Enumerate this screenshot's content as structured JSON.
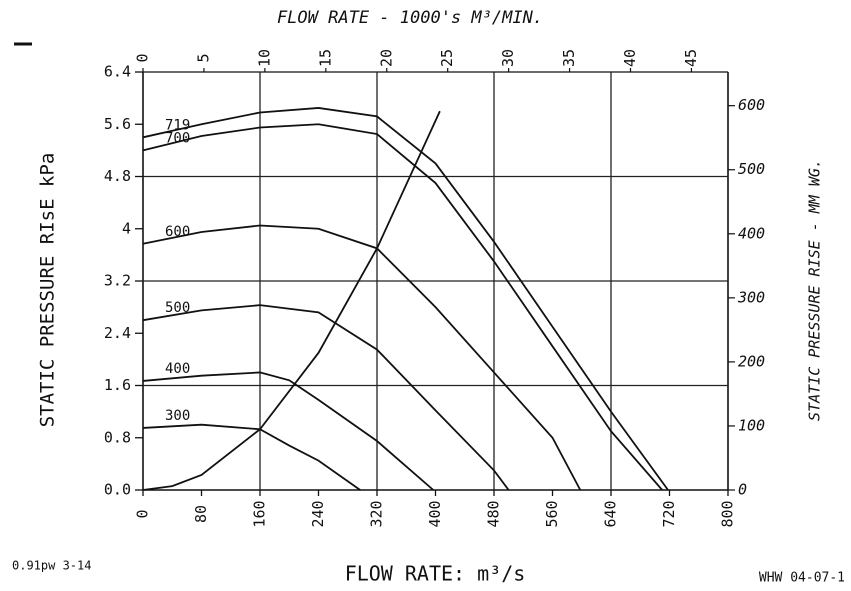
{
  "chart_data": {
    "type": "line",
    "title": "FLOW RATE - 1000's M³/MIN.",
    "x_label": "FLOW RATE: m³/s",
    "y_label": "STATIC PRESSURE RIsE kPa",
    "y2_label": "STATIC PRESSURE RISE - MM WG.",
    "footer_left": "0.91pw 3-14",
    "footer_right": "WHW 04-07-1",
    "xlim": [
      0,
      800
    ],
    "xticks": [
      0,
      80,
      160,
      240,
      320,
      400,
      480,
      560,
      640,
      720,
      800
    ],
    "x2lim": [
      0,
      48
    ],
    "x2ticks": [
      0,
      5,
      10,
      15,
      20,
      25,
      30,
      35,
      40,
      45
    ],
    "ylim": [
      0,
      6.4
    ],
    "yticks": [
      {
        "value": 0,
        "label": "0.0"
      },
      0.8,
      1.6,
      2.4,
      3.2,
      4.0,
      4.8,
      5.6,
      6.4
    ],
    "y2lim": [
      0,
      652.6
    ],
    "y2ticks": [
      0,
      100,
      200,
      300,
      400,
      500,
      600
    ],
    "grid": true,
    "series": [
      {
        "name": "719",
        "color": "#111111",
        "x": [
          0,
          80,
          160,
          240,
          320,
          400,
          480,
          560,
          640,
          718
        ],
        "values": [
          5.4,
          5.6,
          5.78,
          5.85,
          5.72,
          5.0,
          3.8,
          2.5,
          1.2,
          0
        ]
      },
      {
        "name": "700",
        "color": "#111111",
        "x": [
          0,
          80,
          160,
          240,
          320,
          400,
          480,
          560,
          640,
          710
        ],
        "values": [
          5.2,
          5.42,
          5.55,
          5.6,
          5.45,
          4.7,
          3.5,
          2.2,
          0.9,
          0
        ]
      },
      {
        "name": "600",
        "color": "#111111",
        "x": [
          0,
          80,
          160,
          240,
          320,
          400,
          480,
          560,
          598
        ],
        "values": [
          3.77,
          3.95,
          4.05,
          4.0,
          3.7,
          2.8,
          1.8,
          0.8,
          0
        ]
      },
      {
        "name": "500",
        "color": "#111111",
        "x": [
          0,
          80,
          160,
          240,
          320,
          400,
          480,
          500
        ],
        "values": [
          2.6,
          2.75,
          2.83,
          2.72,
          2.15,
          1.22,
          0.3,
          0
        ]
      },
      {
        "name": "400",
        "color": "#111111",
        "x": [
          0,
          80,
          160,
          200,
          240,
          320,
          397
        ],
        "values": [
          1.67,
          1.75,
          1.8,
          1.68,
          1.38,
          0.75,
          0
        ]
      },
      {
        "name": "300",
        "color": "#111111",
        "x": [
          0,
          80,
          160,
          200,
          240,
          297
        ],
        "values": [
          0.95,
          1.0,
          0.93,
          0.68,
          0.45,
          0
        ]
      },
      {
        "color": "#111111",
        "x": [
          0,
          40,
          80,
          160,
          240,
          320,
          406
        ],
        "values": [
          0,
          0.06,
          0.23,
          0.93,
          2.1,
          3.7,
          5.8
        ]
      }
    ]
  }
}
